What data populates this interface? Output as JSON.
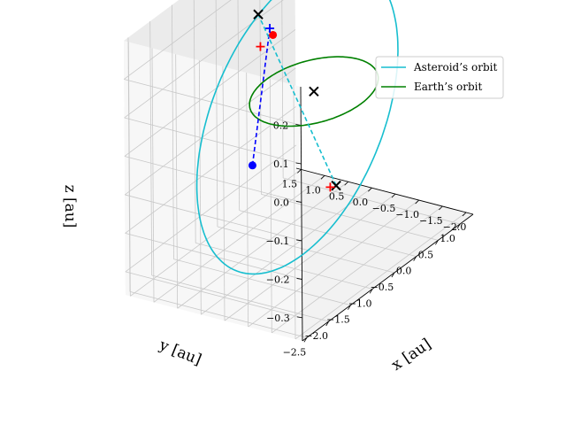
{
  "chart_data": {
    "type": "line",
    "projection": "3d",
    "grid": true,
    "legend_placement": "top-right",
    "xlabel": "x [au]",
    "ylabel": "y [au]",
    "zlabel": "z [au]",
    "xlim": [
      -2.6,
      1.3
    ],
    "ylim": [
      -2.15,
      1.6
    ],
    "zlim": [
      -0.36,
      0.3
    ],
    "xticks": [
      "−2.5",
      "−2.0",
      "−1.5",
      "−1.0",
      "−0.5",
      "0.0",
      "0.5",
      "1.0"
    ],
    "yticks": [
      "1.5",
      "1.0",
      "0.5",
      "0.0",
      "−0.5",
      "−1.0",
      "−1.5",
      "−2.0"
    ],
    "zticks": [
      "0.2",
      "0.1",
      "0.0",
      "−0.1",
      "−0.2",
      "−0.3"
    ],
    "series": [
      {
        "name": "Asteroid’s orbit",
        "color": "#17becf",
        "kind": "ellipse",
        "center": [
          -0.7,
          -0.3,
          0.0
        ],
        "axis_a": [
          1.05,
          -1.15,
          0.17
        ],
        "axis_b": [
          0.8,
          1.0,
          0.24
        ]
      },
      {
        "name": "Earth’s orbit",
        "color": "#008000",
        "kind": "circle",
        "center": [
          0,
          0,
          0
        ],
        "radius": 1.0
      }
    ],
    "markers": [
      {
        "kind": "x",
        "color": "#000000",
        "point": [
          0.0,
          0.0,
          0.0
        ]
      },
      {
        "kind": "x",
        "color": "#000000",
        "point": [
          -0.15,
          1.03,
          0.18
        ]
      },
      {
        "kind": "x",
        "color": "#000000",
        "point": [
          -1.05,
          -1.44,
          -0.11
        ]
      },
      {
        "kind": "dot",
        "color": "#0000ff",
        "point": [
          -2.05,
          -0.6,
          0.0
        ]
      },
      {
        "kind": "dot",
        "color": "#ff0000",
        "point": [
          0.17,
          1.02,
          0.1
        ]
      },
      {
        "kind": "plus",
        "color": "#0000ff",
        "point": [
          -0.05,
          0.88,
          0.14
        ]
      },
      {
        "kind": "plus",
        "color": "#ff0000",
        "point": [
          -0.17,
          0.97,
          0.1
        ]
      },
      {
        "kind": "plus",
        "color": "#ff0000",
        "point": [
          -1.12,
          -1.38,
          -0.11
        ]
      }
    ],
    "dashed_lines": [
      {
        "color": "#0000ff",
        "from": [
          -2.05,
          -0.6,
          0.0
        ],
        "to": [
          -0.05,
          0.88,
          0.14
        ]
      },
      {
        "color": "#17becf",
        "from": [
          -1.05,
          -1.44,
          -0.11
        ],
        "to": [
          -0.15,
          1.03,
          0.18
        ]
      }
    ]
  }
}
